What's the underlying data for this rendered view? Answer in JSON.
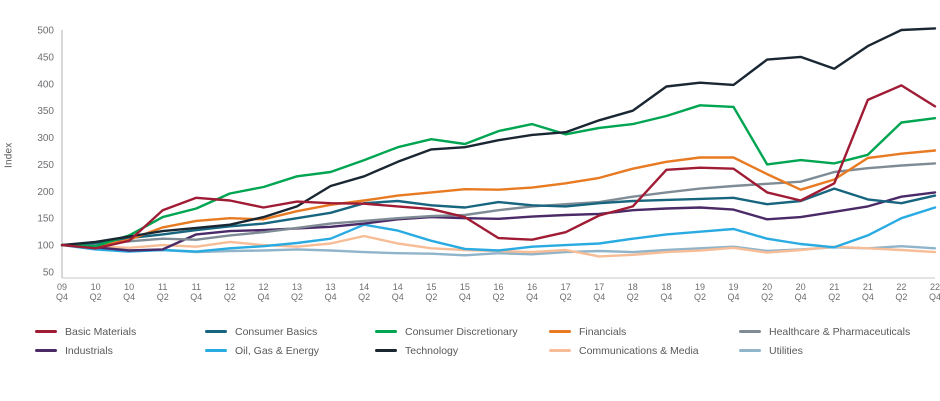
{
  "chart_data": {
    "type": "line",
    "title": "",
    "ylabel": "Index",
    "xlabel": "",
    "ylim": [
      50,
      500
    ],
    "yticks": [
      50,
      100,
      150,
      200,
      250,
      300,
      350,
      400,
      450,
      500
    ],
    "grid": false,
    "legend_position": "bottom",
    "categories": [
      "09 Q4",
      "10 Q2",
      "10 Q4",
      "11 Q2",
      "11 Q4",
      "12 Q2",
      "12 Q4",
      "13 Q2",
      "13 Q4",
      "14 Q2",
      "14 Q4",
      "15 Q2",
      "15 Q4",
      "16 Q2",
      "16 Q4",
      "17 Q2",
      "17 Q4",
      "18 Q2",
      "18 Q4",
      "19 Q2",
      "19 Q4",
      "20 Q2",
      "20 Q4",
      "21 Q2",
      "21 Q4",
      "22 Q2",
      "22 Q4"
    ],
    "series": [
      {
        "name": "Basic Materials",
        "color": "#a01c35",
        "values": [
          100,
          94,
          108,
          165,
          188,
          183,
          170,
          181,
          178,
          177,
          172,
          167,
          152,
          113,
          110,
          124,
          155,
          172,
          240,
          244,
          242,
          198,
          183,
          215,
          370,
          397,
          358
        ]
      },
      {
        "name": "Consumer Basics",
        "color": "#17657f",
        "values": [
          100,
          104,
          113,
          120,
          128,
          135,
          140,
          150,
          160,
          178,
          182,
          174,
          170,
          180,
          174,
          172,
          178,
          182,
          184,
          186,
          188,
          176,
          182,
          205,
          185,
          178,
          192
        ]
      },
      {
        "name": "Consumer Discretionary",
        "color": "#00a551",
        "values": [
          100,
          98,
          118,
          152,
          168,
          196,
          208,
          228,
          236,
          258,
          282,
          297,
          288,
          312,
          325,
          306,
          318,
          325,
          340,
          360,
          357,
          250,
          258,
          252,
          268,
          328,
          336
        ]
      },
      {
        "name": "Financials",
        "color": "#e87a22",
        "values": [
          100,
          97,
          110,
          133,
          145,
          150,
          148,
          163,
          175,
          183,
          192,
          198,
          204,
          203,
          207,
          215,
          225,
          242,
          255,
          263,
          263,
          232,
          203,
          222,
          262,
          270,
          276
        ]
      },
      {
        "name": "Healthcare & Pharmaceuticals",
        "color": "#7f8c96",
        "values": [
          100,
          101,
          107,
          112,
          110,
          118,
          124,
          132,
          140,
          145,
          150,
          154,
          156,
          165,
          172,
          176,
          180,
          190,
          198,
          205,
          210,
          214,
          218,
          236,
          243,
          248,
          252
        ]
      },
      {
        "name": "Industrials",
        "color": "#4b2a68",
        "values": [
          100,
          96,
          90,
          92,
          120,
          126,
          128,
          131,
          134,
          140,
          148,
          152,
          150,
          149,
          153,
          156,
          158,
          165,
          168,
          170,
          166,
          148,
          152,
          162,
          172,
          190,
          198
        ]
      },
      {
        "name": "Oil, Gas & Energy",
        "color": "#29abe2",
        "values": [
          100,
          92,
          88,
          91,
          88,
          94,
          98,
          104,
          112,
          138,
          127,
          108,
          93,
          90,
          97,
          100,
          103,
          112,
          120,
          125,
          130,
          112,
          102,
          96,
          118,
          150,
          170
        ]
      },
      {
        "name": "Technology",
        "color": "#1a2733",
        "values": [
          100,
          106,
          116,
          126,
          132,
          138,
          152,
          172,
          210,
          228,
          255,
          278,
          282,
          295,
          305,
          310,
          332,
          350,
          395,
          402,
          398,
          445,
          450,
          428,
          470,
          500,
          503
        ]
      },
      {
        "name": "Communications & Media",
        "color": "#f7bd97",
        "values": [
          100,
          97,
          95,
          100,
          97,
          106,
          100,
          97,
          103,
          117,
          103,
          94,
          91,
          89,
          87,
          91,
          79,
          82,
          87,
          90,
          95,
          86,
          91,
          97,
          94,
          91,
          87
        ]
      },
      {
        "name": "Utilities",
        "color": "#90b4c9",
        "values": [
          100,
          96,
          90,
          91,
          87,
          89,
          90,
          92,
          90,
          87,
          85,
          84,
          81,
          85,
          83,
          87,
          89,
          87,
          91,
          94,
          97,
          89,
          92,
          96,
          94,
          98,
          94
        ]
      }
    ],
    "draw_order": [
      9,
      8,
      6,
      5,
      4,
      1,
      3,
      2,
      7,
      0
    ],
    "axis_color": "#aeb0b3",
    "tick_text_color": "#6d6e71"
  }
}
